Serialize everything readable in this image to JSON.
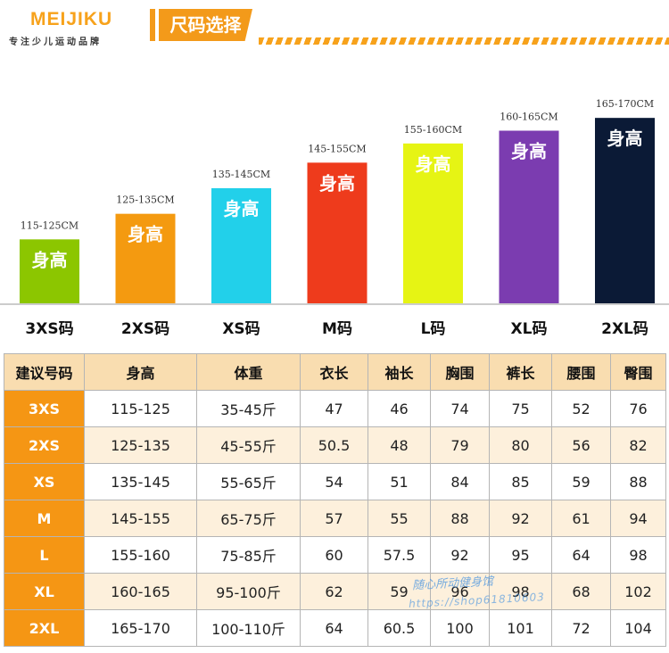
{
  "header": {
    "brand": "MEIJIKU",
    "brand_sub": "专注少儿运动品牌",
    "section_title": "尺码选择"
  },
  "chart_data": {
    "type": "bar",
    "categories": [
      "3XS码",
      "2XS码",
      "XS码",
      "M码",
      "L码",
      "XL码",
      "2XL码"
    ],
    "bar_label": "身高",
    "range_labels": [
      "115-125CM",
      "125-135CM",
      "135-145CM",
      "145-155CM",
      "155-160CM",
      "160-165CM",
      "165-170CM"
    ],
    "values": [
      120,
      130,
      140,
      150,
      157.5,
      162.5,
      167.5
    ],
    "colors": [
      "#8cc600",
      "#f49a10",
      "#22d0ea",
      "#ee3b1c",
      "#e6f414",
      "#7b3cb0",
      "#0b1a36"
    ],
    "ylim": [
      95,
      170
    ]
  },
  "table": {
    "headers": [
      "建议号码",
      "身高",
      "体重",
      "衣长",
      "袖长",
      "胸围",
      "裤长",
      "腰围",
      "臀围"
    ],
    "rows": [
      [
        "3XS",
        "115-125",
        "35-45斤",
        "47",
        "46",
        "74",
        "75",
        "52",
        "76"
      ],
      [
        "2XS",
        "125-135",
        "45-55斤",
        "50.5",
        "48",
        "79",
        "80",
        "56",
        "82"
      ],
      [
        "XS",
        "135-145",
        "55-65斤",
        "54",
        "51",
        "84",
        "85",
        "59",
        "88"
      ],
      [
        "M",
        "145-155",
        "65-75斤",
        "57",
        "55",
        "88",
        "92",
        "61",
        "94"
      ],
      [
        "L",
        "155-160",
        "75-85斤",
        "60",
        "57.5",
        "92",
        "95",
        "64",
        "98"
      ],
      [
        "XL",
        "160-165",
        "95-100斤",
        "62",
        "59",
        "96",
        "98",
        "68",
        "102"
      ],
      [
        "2XL",
        "165-170",
        "100-110斤",
        "64",
        "60.5",
        "100",
        "101",
        "72",
        "104"
      ]
    ]
  },
  "watermark": {
    "line1": "随心所动健身馆",
    "line2": "https://shop61810603"
  }
}
